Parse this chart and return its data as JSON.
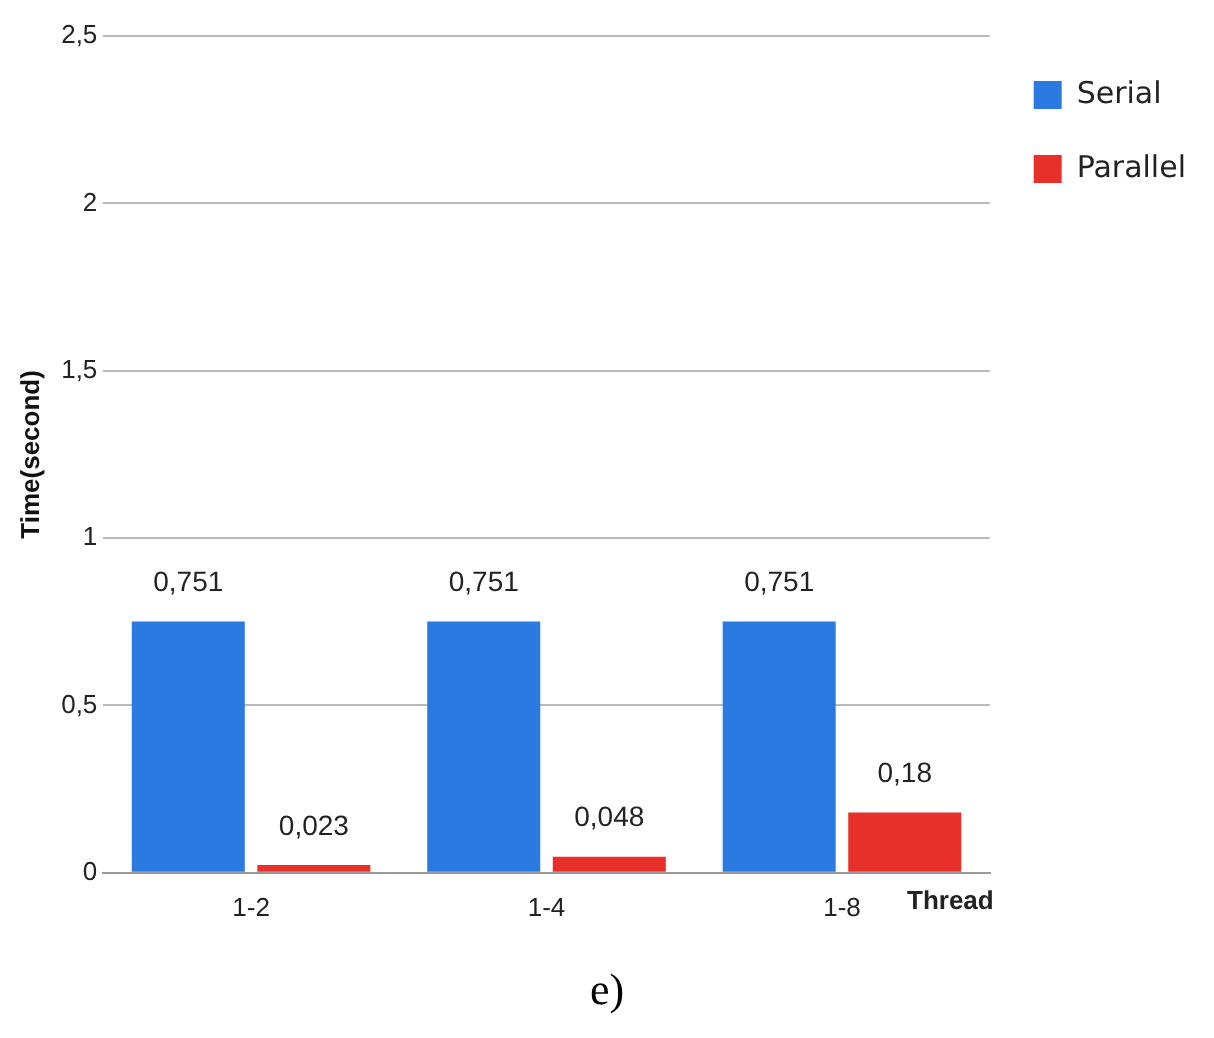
{
  "chart_data": {
    "type": "bar",
    "ylabel": "Time(second)",
    "xlabel": "Thread",
    "categories": [
      "1-2",
      "1-4",
      "1-8"
    ],
    "series": [
      {
        "name": "Serial",
        "color": "#2a7ae2",
        "values": [
          0.751,
          0.751,
          0.751
        ],
        "value_labels": [
          "0,751",
          "0,751",
          "0,751"
        ]
      },
      {
        "name": "Parallel",
        "color": "#e8302a",
        "values": [
          0.023,
          0.048,
          0.18
        ],
        "value_labels": [
          "0,023",
          "0,048",
          "0,18"
        ]
      }
    ],
    "ylim": [
      0,
      2.5
    ],
    "yticks": [
      0,
      {
        "value": 0.5,
        "label": "0,5"
      },
      1,
      {
        "value": 1.5,
        "label": "1,5"
      },
      2,
      {
        "value": 2.5,
        "label": "2,5"
      }
    ],
    "grid": "y",
    "legend": "top right",
    "annotations": [
      "e)"
    ]
  }
}
